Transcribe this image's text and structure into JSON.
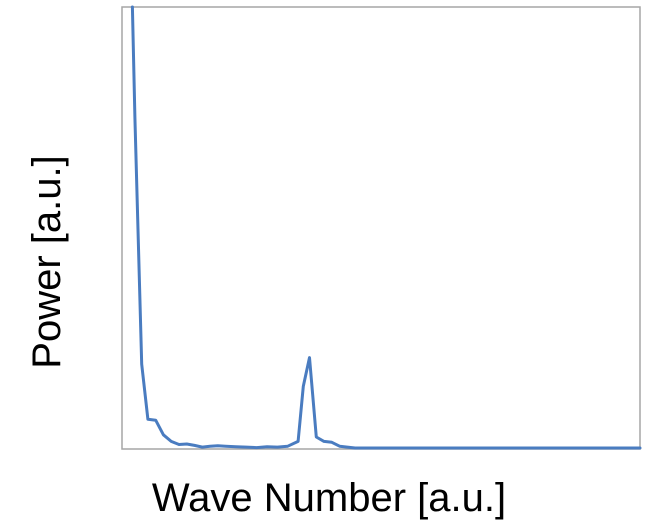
{
  "chart_data": {
    "type": "line",
    "title": "",
    "xlabel": "Wave Number [a.u.]",
    "ylabel": "Power [a.u.]",
    "xlim": [
      0,
      100
    ],
    "ylim": [
      0,
      100
    ],
    "grid": false,
    "legend": "none",
    "axis_ticks": false,
    "series": [
      {
        "color": "#4a7cc0",
        "x": [
          2.0,
          2.5,
          3.8,
          5.0,
          6.5,
          8.0,
          9.5,
          11.0,
          12.5,
          14.0,
          15.5,
          17.0,
          18.5,
          20.0,
          22.0,
          24.0,
          26.0,
          28.0,
          30.0,
          32.0,
          34.0,
          35.0,
          36.2,
          37.5,
          39.0,
          40.5,
          42.0,
          43.5,
          45.0,
          47.0,
          50.0,
          55.0,
          60.0,
          65.0,
          70.0,
          75.0,
          80.0,
          85.0,
          90.0,
          95.0,
          100.0
        ],
        "y": [
          100,
          75.0,
          19.0,
          6.5,
          6.3,
          3.0,
          1.5,
          0.8,
          0.9,
          0.6,
          0.2,
          0.4,
          0.5,
          0.4,
          0.3,
          0.2,
          0.1,
          0.3,
          0.2,
          0.4,
          1.5,
          14.0,
          20.5,
          2.5,
          1.5,
          1.3,
          0.4,
          0.2,
          0.0,
          0.0,
          0.0,
          0.0,
          0.0,
          0.0,
          0.0,
          0.0,
          0.0,
          0.0,
          0.0,
          0.0,
          0.0
        ]
      }
    ]
  }
}
